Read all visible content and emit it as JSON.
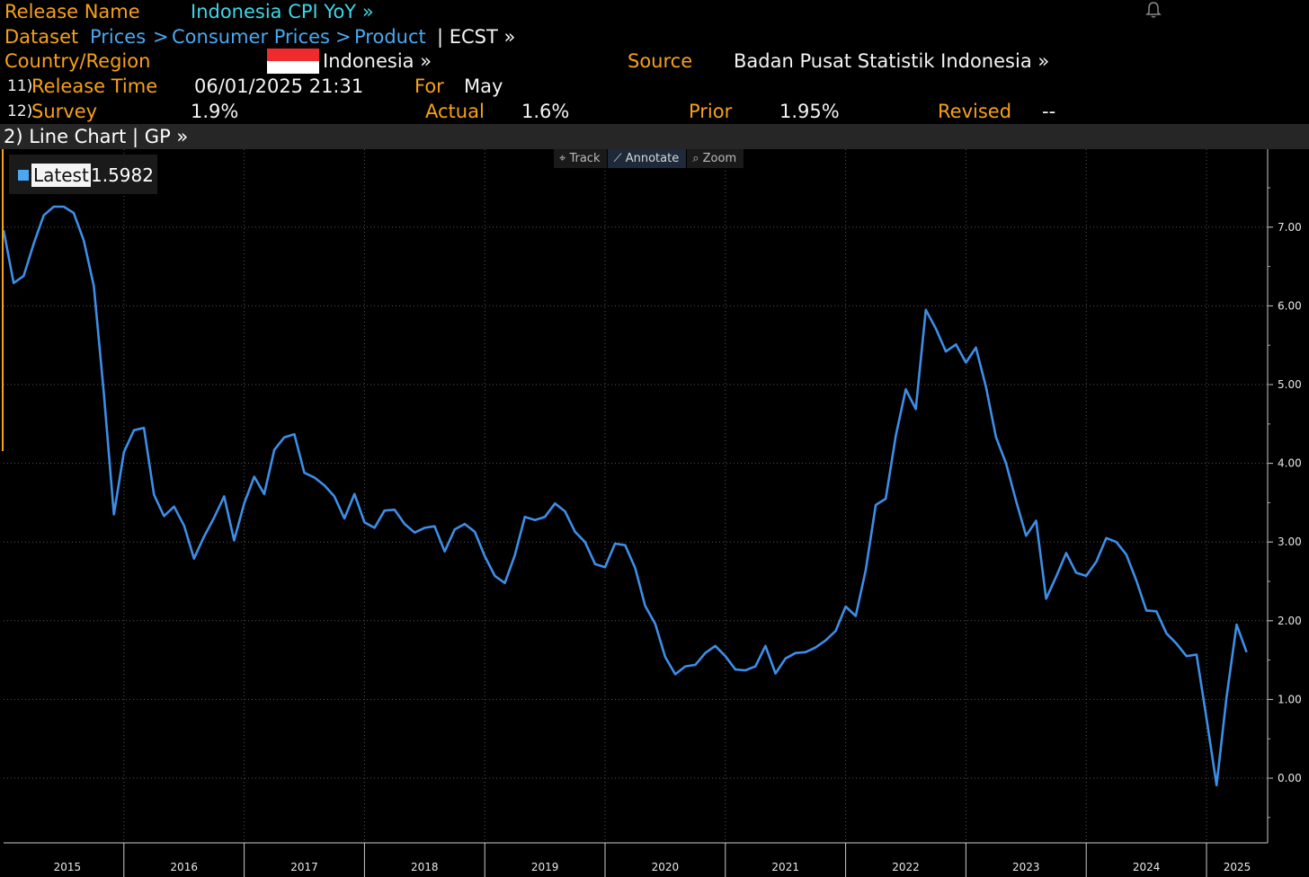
{
  "header": {
    "release_name_label": "Release Name",
    "release_name_value": "Indonesia CPI YoY »",
    "dataset_label": "Dataset",
    "dataset_path": [
      "Prices",
      ">",
      "Consumer Prices",
      ">",
      "Product"
    ],
    "dataset_code": "| ECST »",
    "country_label": "Country/Region",
    "country_value": "Indonesia »",
    "source_label": "Source",
    "source_value": "Badan Pusat Statistik Indonesia »",
    "release_time_num": "11)",
    "release_time_label": "Release Time",
    "release_time_value": "06/01/2025 21:31",
    "for_label": "For",
    "for_value": "May",
    "survey_num": "12)",
    "survey_label": "Survey",
    "survey_value": "1.9%",
    "actual_label": "Actual",
    "actual_value": "1.6%",
    "prior_label": "Prior",
    "prior_value": "1.95%",
    "revised_label": "Revised",
    "revised_value": "--"
  },
  "chart_bar": {
    "label": "2) Line Chart | GP »"
  },
  "toolbar": {
    "track": "Track",
    "annotate": "Annotate",
    "zoom": "Zoom"
  },
  "legend": {
    "label": "Latest",
    "value": "1.5982"
  },
  "colors": {
    "orange": "#f7a11a",
    "cyan": "#3ed6e6",
    "blue": "#4aa8f0",
    "line": "#3d8ee8",
    "grid": "#555555"
  },
  "icons": {
    "bell": "bell-icon",
    "track": "crosshair-icon",
    "annotate": "pencil-icon",
    "zoom": "magnifier-icon"
  },
  "chart_data": {
    "type": "line",
    "series": [
      {
        "name": "Latest",
        "x_start": "2015-01",
        "values": [
          6.96,
          6.29,
          6.38,
          6.79,
          7.15,
          7.26,
          7.26,
          7.18,
          6.83,
          6.25,
          4.89,
          3.35,
          4.14,
          4.42,
          4.45,
          3.6,
          3.33,
          3.45,
          3.21,
          2.79,
          3.07,
          3.31,
          3.58,
          3.02,
          3.49,
          3.83,
          3.61,
          4.17,
          4.33,
          4.37,
          3.88,
          3.82,
          3.72,
          3.58,
          3.3,
          3.61,
          3.25,
          3.18,
          3.4,
          3.41,
          3.23,
          3.12,
          3.18,
          3.2,
          2.88,
          3.16,
          3.23,
          3.13,
          2.82,
          2.57,
          2.48,
          2.83,
          3.32,
          3.28,
          3.32,
          3.49,
          3.39,
          3.13,
          3.0,
          2.72,
          2.68,
          2.98,
          2.96,
          2.67,
          2.19,
          1.96,
          1.54,
          1.32,
          1.42,
          1.44,
          1.59,
          1.68,
          1.55,
          1.38,
          1.37,
          1.42,
          1.68,
          1.33,
          1.52,
          1.59,
          1.6,
          1.66,
          1.75,
          1.87,
          2.18,
          2.06,
          2.64,
          3.47,
          3.55,
          4.35,
          4.94,
          4.69,
          5.95,
          5.71,
          5.42,
          5.51,
          5.28,
          5.47,
          4.97,
          4.33,
          4.0,
          3.52,
          3.08,
          3.27,
          2.28,
          2.56,
          2.86,
          2.61,
          2.57,
          2.75,
          3.05,
          3.0,
          2.84,
          2.51,
          2.13,
          2.12,
          1.84,
          1.71,
          1.55,
          1.57,
          0.76,
          -0.09,
          1.03,
          1.95,
          1.6
        ]
      }
    ],
    "x_tick_labels": [
      "2015",
      "2016",
      "2017",
      "2018",
      "2019",
      "2020",
      "2021",
      "2022",
      "2023",
      "2024",
      "2025"
    ],
    "y_tick_labels": [
      "0.00",
      "1.00",
      "2.00",
      "3.00",
      "4.00",
      "5.00",
      "6.00",
      "7.00"
    ],
    "ylim": [
      -0.5,
      8.0
    ],
    "grid": true,
    "legend_position": "top-left",
    "xlabel": "",
    "ylabel": ""
  }
}
